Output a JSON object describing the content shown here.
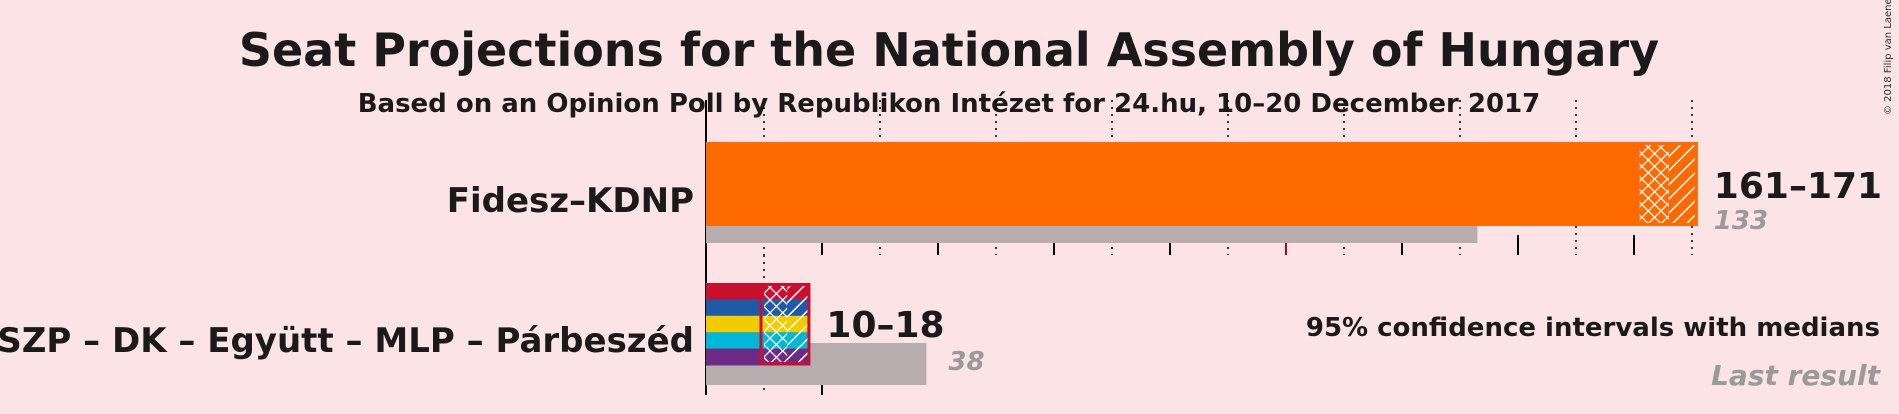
{
  "colors": {
    "background": "#fbe3e6",
    "last_result": "#b7adae",
    "fidesz": "#ff6a00",
    "majority_line": "#b0003a"
  },
  "copyright": "© 2018 Filip van Laenen",
  "chart_data": {
    "type": "bar",
    "title": "Seat Projections for the National Assembly of Hungary",
    "subtitle": "Based on an Opinion Poll by Republikon Intézet for 24.hu, 10–20 December 2017",
    "xlim": [
      0,
      175
    ],
    "tick_step": 10,
    "majority": 100,
    "legend": {
      "ci": "95% confidence intervals with medians",
      "last": "Last result",
      "placement": "bottom-right"
    },
    "series": [
      {
        "name": "Fidesz–KDNP",
        "ci_low": 161,
        "median": 166,
        "ci_high": 171,
        "range_label": "161–171",
        "last_result": 133,
        "last_label": "133",
        "colors": [
          "#ff6a00"
        ]
      },
      {
        "name": "MSZP – DK – Együtt – MLP – Párbeszéd",
        "ci_low": 10,
        "median": 14,
        "ci_high": 18,
        "range_label": "10–18",
        "last_result": 38,
        "last_label": "38",
        "colors": [
          "#c8102e",
          "#1f5aa6",
          "#f2cc00",
          "#00b7d6",
          "#6c2a85"
        ]
      }
    ]
  }
}
